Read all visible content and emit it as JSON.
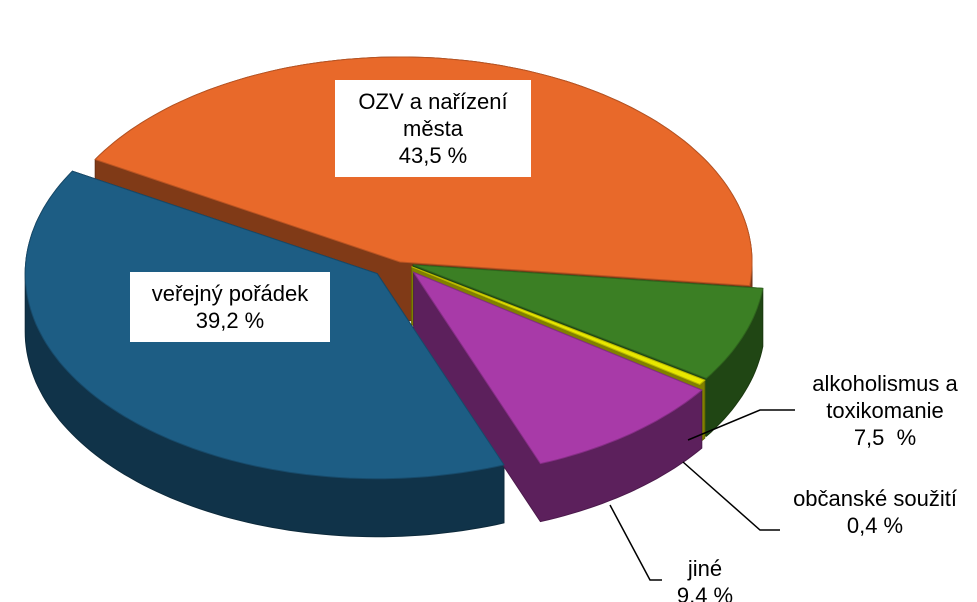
{
  "chart_data": {
    "type": "pie",
    "categories": [
      "OZV a nařízení města",
      "alkoholismus a toxikomanie",
      "občanské soužití",
      "jiné",
      "veřejný pořádek"
    ],
    "values": [
      43.5,
      7.5,
      0.4,
      9.4,
      39.2
    ],
    "value_labels": [
      "43,5 %",
      "7,5  %",
      "0,4 %",
      "9,4 %",
      "39,2 %"
    ],
    "colors": [
      "#e8692a",
      "#3b7f24",
      "#e8e800",
      "#a83aa8",
      "#1d5d84"
    ]
  }
}
